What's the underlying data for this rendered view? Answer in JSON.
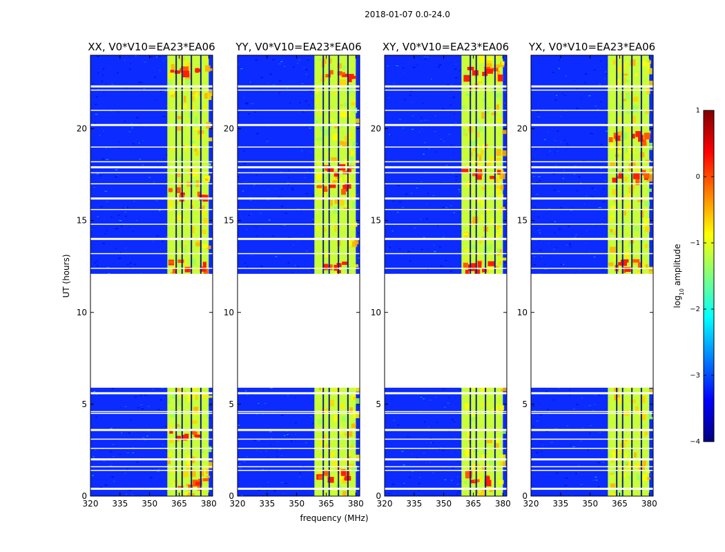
{
  "chart_data": {
    "type": "heatmap",
    "suptitle": "2018-01-07 0.0-24.0",
    "panels": [
      {
        "title": "XX, V0*V10=EA23*EA06",
        "hot_rows": [
          0.7,
          3.4,
          12.6,
          16.6,
          23.2
        ]
      },
      {
        "title": "YY, V0*V10=EA23*EA06",
        "hot_rows": [
          1.2,
          12.5,
          16.9,
          17.8,
          23.0
        ]
      },
      {
        "title": "XY, V0*V10=EA23*EA06",
        "hot_rows": [
          1.1,
          12.5,
          17.6,
          23.1
        ]
      },
      {
        "title": "YX, V0*V10=EA23*EA06",
        "hot_rows": [
          12.6,
          17.5,
          19.6
        ]
      }
    ],
    "xlabel": "frequency (MHz)",
    "ylabel": "UT (hours)",
    "xlim": [
      320,
      382
    ],
    "ylim": [
      0,
      24
    ],
    "xticks": [
      "320",
      "335",
      "350",
      "365",
      "380"
    ],
    "yticks": [
      "0",
      "5",
      "10",
      "15",
      "20"
    ],
    "band_mhz": [
      359,
      380
    ],
    "vertical_gaps_mhz": [
      363.5,
      366.5,
      371.2,
      376.0
    ],
    "no_data_hours": [
      5.9,
      12.1
    ],
    "flagged_rows_hours": [
      0.4,
      1.4,
      1.6,
      2.0,
      2.6,
      3.1,
      3.6,
      4.5,
      4.6,
      5.6,
      12.4,
      13.2,
      14.0,
      14.8,
      15.6,
      16.2,
      17.0,
      17.6,
      17.9,
      18.2,
      19.0,
      20.2,
      21.0,
      22.1,
      22.3
    ],
    "colorbar": {
      "label": "log10 amplitude",
      "label_prefix": "log",
      "label_sub": "10",
      "label_suffix": " amplitude",
      "range": [
        -4,
        1
      ],
      "ticks": [
        "−4",
        "−3",
        "−2",
        "−1",
        "0",
        "1"
      ],
      "colormap": [
        "#00007f",
        "#0000ff",
        "#007fff",
        "#00ffff",
        "#7fff7f",
        "#ffff00",
        "#ff7f00",
        "#ff0000",
        "#7f0000"
      ]
    }
  }
}
